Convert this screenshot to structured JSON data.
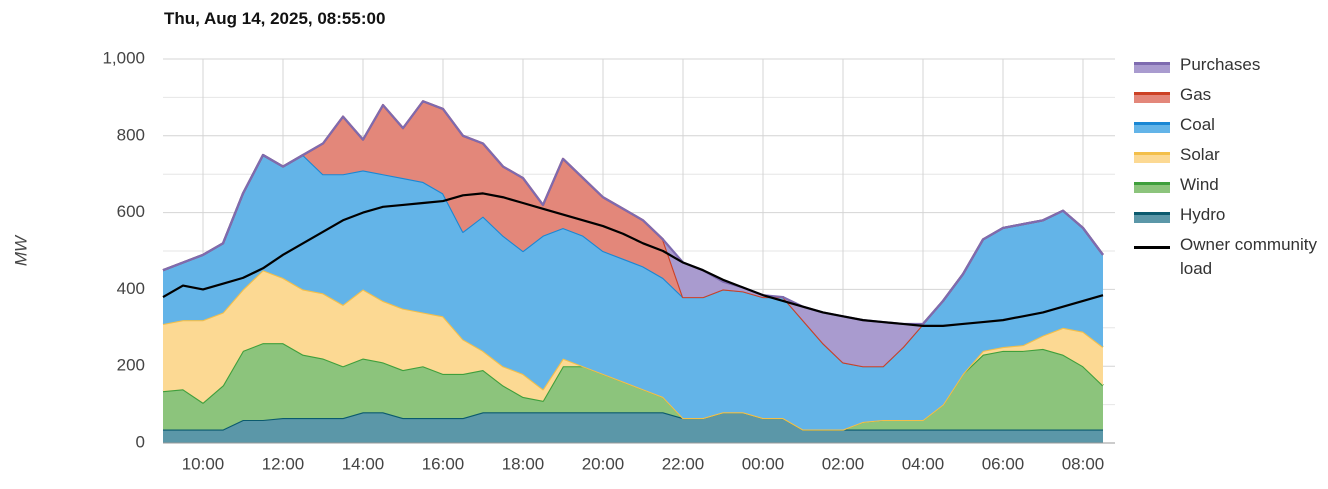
{
  "chart_data": {
    "type": "stacked_area",
    "title": "Thu, Aug 14, 2025, 08:55:00",
    "y_label": "MW",
    "x": [
      "09:00",
      "09:30",
      "10:00",
      "10:30",
      "11:00",
      "11:30",
      "12:00",
      "12:30",
      "13:00",
      "13:30",
      "14:00",
      "14:30",
      "15:00",
      "15:30",
      "16:00",
      "16:30",
      "17:00",
      "17:30",
      "18:00",
      "18:30",
      "19:00",
      "19:30",
      "20:00",
      "20:30",
      "21:00",
      "21:30",
      "22:00",
      "22:30",
      "23:00",
      "23:30",
      "00:00",
      "00:30",
      "01:00",
      "01:30",
      "02:00",
      "02:30",
      "03:00",
      "03:30",
      "04:00",
      "04:30",
      "05:00",
      "05:30",
      "06:00",
      "06:30",
      "07:00",
      "07:30",
      "08:00",
      "08:30"
    ],
    "xticks": [
      "10:00",
      "12:00",
      "14:00",
      "16:00",
      "18:00",
      "20:00",
      "22:00",
      "00:00",
      "02:00",
      "04:00",
      "06:00",
      "08:00"
    ],
    "ylim": [
      0,
      1000
    ],
    "yticks": [
      0,
      200,
      400,
      600,
      800,
      {
        "value": 1000,
        "label": "1,000"
      }
    ],
    "minor_yticks": [
      100,
      300,
      500,
      700,
      900
    ],
    "grid": true,
    "series": [
      {
        "name": "Hydro",
        "color": "#5b97a8",
        "line_color": "#0b5a6e",
        "values": [
          35,
          35,
          35,
          35,
          60,
          60,
          65,
          65,
          65,
          65,
          80,
          80,
          65,
          65,
          65,
          65,
          80,
          80,
          80,
          80,
          80,
          80,
          80,
          80,
          80,
          80,
          65,
          65,
          80,
          80,
          65,
          65,
          35,
          35,
          35,
          35,
          35,
          35,
          35,
          35,
          35,
          35,
          35,
          35,
          35,
          35,
          35,
          35
        ]
      },
      {
        "name": "Wind",
        "color": "#8cc47c",
        "line_color": "#3f9f3c",
        "values": [
          100,
          105,
          70,
          115,
          180,
          200,
          195,
          165,
          155,
          135,
          140,
          130,
          125,
          135,
          115,
          115,
          110,
          70,
          40,
          30,
          120,
          120,
          100,
          80,
          60,
          40,
          0,
          0,
          0,
          0,
          0,
          0,
          0,
          0,
          0,
          20,
          25,
          25,
          25,
          65,
          145,
          195,
          205,
          205,
          210,
          195,
          165,
          115
        ]
      },
      {
        "name": "Solar",
        "color": "#fcd993",
        "line_color": "#f3bf4a",
        "values": [
          175,
          180,
          215,
          190,
          160,
          190,
          170,
          170,
          170,
          160,
          180,
          160,
          160,
          140,
          150,
          90,
          50,
          50,
          60,
          30,
          20,
          0,
          0,
          0,
          0,
          0,
          0,
          0,
          0,
          0,
          0,
          0,
          0,
          0,
          0,
          0,
          0,
          0,
          0,
          0,
          0,
          10,
          10,
          15,
          35,
          70,
          90,
          100
        ]
      },
      {
        "name": "Coal",
        "color": "#63b4e8",
        "line_color": "#1a87d4",
        "values": [
          140,
          150,
          170,
          180,
          250,
          300,
          290,
          350,
          310,
          340,
          310,
          330,
          340,
          340,
          320,
          280,
          350,
          340,
          320,
          400,
          340,
          340,
          320,
          320,
          320,
          310,
          315,
          315,
          320,
          315,
          315,
          315,
          285,
          225,
          175,
          145,
          140,
          190,
          250,
          270,
          260,
          290,
          310,
          315,
          300,
          305,
          270,
          240
        ]
      },
      {
        "name": "Gas",
        "color": "#e3877a",
        "line_color": "#cc4125",
        "values": [
          0,
          0,
          0,
          0,
          0,
          0,
          0,
          0,
          80,
          150,
          80,
          180,
          130,
          210,
          220,
          250,
          190,
          180,
          190,
          80,
          180,
          150,
          140,
          130,
          120,
          100,
          0,
          0,
          0,
          0,
          0,
          0,
          0,
          0,
          0,
          0,
          0,
          0,
          0,
          0,
          0,
          0,
          0,
          0,
          0,
          0,
          0,
          0
        ]
      },
      {
        "name": "Purchases",
        "color": "#a99bcf",
        "line_color": "#7e6bb0",
        "values": [
          0,
          0,
          0,
          0,
          0,
          0,
          0,
          0,
          0,
          0,
          0,
          0,
          0,
          0,
          0,
          0,
          0,
          0,
          0,
          0,
          0,
          0,
          0,
          0,
          0,
          0,
          90,
          70,
          20,
          10,
          5,
          0,
          35,
          80,
          120,
          120,
          115,
          60,
          0,
          0,
          0,
          0,
          0,
          0,
          0,
          0,
          0,
          0
        ]
      },
      {
        "name": "Owner community load",
        "type": "line",
        "color": "#000000",
        "values": [
          380,
          410,
          400,
          415,
          430,
          455,
          490,
          520,
          550,
          580,
          600,
          615,
          620,
          625,
          630,
          645,
          650,
          640,
          625,
          610,
          595,
          580,
          565,
          545,
          520,
          500,
          470,
          450,
          425,
          405,
          385,
          370,
          355,
          340,
          330,
          320,
          315,
          310,
          305,
          305,
          310,
          315,
          320,
          330,
          340,
          355,
          370,
          385
        ]
      }
    ]
  }
}
